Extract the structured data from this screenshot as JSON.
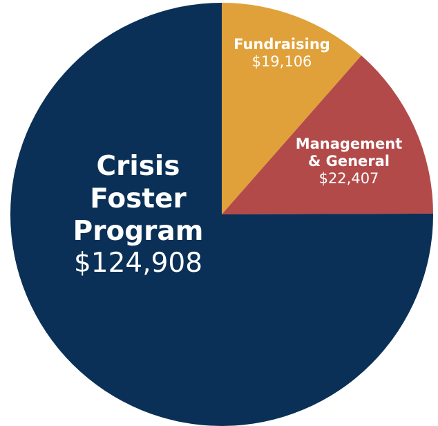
{
  "chart_data": {
    "type": "pie",
    "categories": [
      "Crisis Foster Program",
      "Fundraising",
      "Management & General"
    ],
    "values": [
      124908,
      19106,
      22407
    ],
    "value_labels": [
      "$124,908",
      "$19,106",
      "$22,407"
    ],
    "colors": [
      "#0a3057",
      "#e0a13a",
      "#b34a4a"
    ]
  }
}
